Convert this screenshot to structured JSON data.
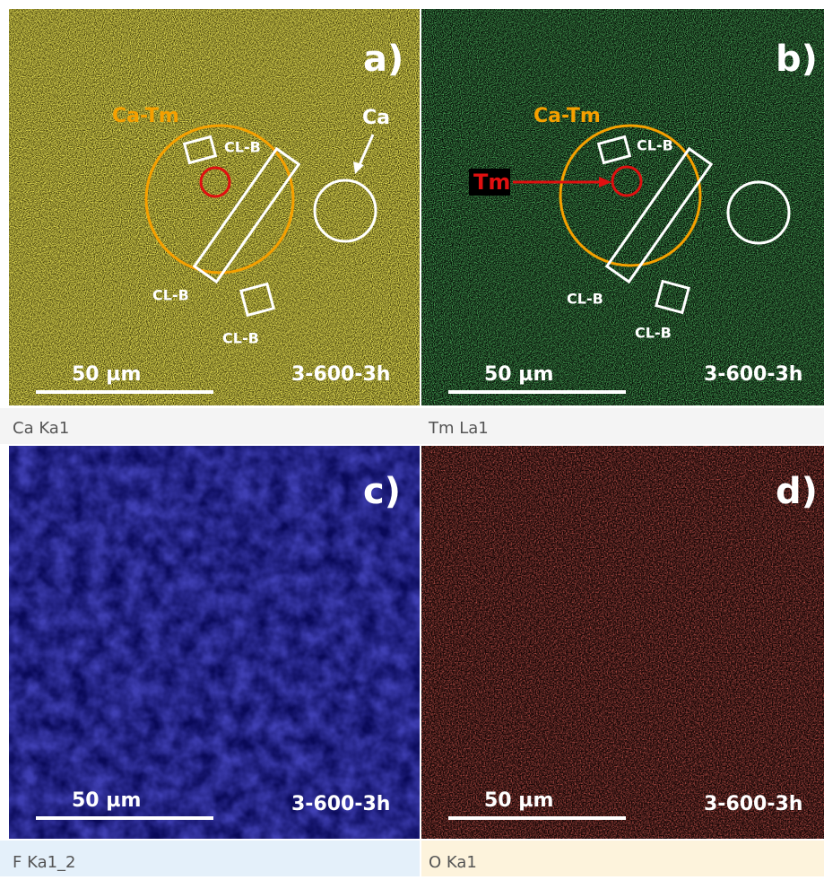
{
  "panels": [
    {
      "label": "a)",
      "annotations": [
        "Ca-Tm",
        "CL-B",
        "CL-B",
        "CL-B",
        "Ca"
      ],
      "scale_bar": "50 µm",
      "sample": "3-600-3h",
      "caption": "Ca Ka1"
    },
    {
      "label": "b)",
      "annotations": [
        "Ca-Tm",
        "CL-B",
        "Tm",
        "CL-B",
        "CL-B"
      ],
      "scale_bar": "50 µm",
      "sample": "3-600-3h",
      "caption": "Tm La1"
    },
    {
      "label": "c)",
      "scale_bar": "50 µm",
      "sample": "3-600-3h",
      "caption": "F Ka1_2"
    },
    {
      "label": "d)",
      "scale_bar": "50 µm",
      "sample": "3-600-3h",
      "caption": "O Ka1"
    }
  ]
}
